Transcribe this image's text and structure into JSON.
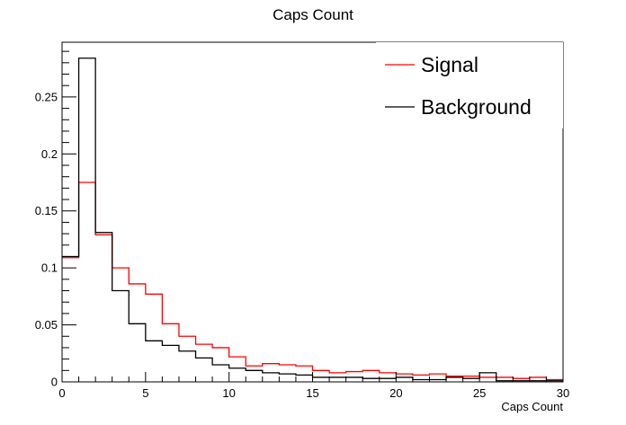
{
  "chart_data": {
    "type": "histogram",
    "title": "Caps Count",
    "xlabel": "Caps Count",
    "ylabel": "",
    "xlim": [
      0,
      30
    ],
    "ylim": [
      0,
      0.298
    ],
    "bin_width": 1,
    "bin_edges_start": 0,
    "x_ticks": [
      "0",
      "5",
      "10",
      "15",
      "20",
      "25",
      "30"
    ],
    "y_ticks": [
      "0",
      "0.05",
      "0.1",
      "0.15",
      "0.2",
      "0.25"
    ],
    "legend_position": "top-right",
    "grid": false,
    "series": [
      {
        "name": "Signal",
        "color": "#ff0000",
        "values": [
          0.109,
          0.175,
          0.129,
          0.1,
          0.086,
          0.077,
          0.051,
          0.04,
          0.033,
          0.03,
          0.022,
          0.014,
          0.016,
          0.015,
          0.014,
          0.01,
          0.008,
          0.009,
          0.01,
          0.008,
          0.007,
          0.006,
          0.007,
          0.005,
          0.005,
          0.004,
          0.004,
          0.003,
          0.004,
          0.002
        ]
      },
      {
        "name": "Background",
        "color": "#000000",
        "values": [
          0.11,
          0.284,
          0.131,
          0.08,
          0.051,
          0.036,
          0.032,
          0.027,
          0.021,
          0.015,
          0.012,
          0.01,
          0.008,
          0.007,
          0.006,
          0.004,
          0.004,
          0.004,
          0.003,
          0.003,
          0.004,
          0.002,
          0.002,
          0.004,
          0.003,
          0.008,
          0.001,
          0.001,
          0.001,
          0.001
        ]
      }
    ]
  }
}
